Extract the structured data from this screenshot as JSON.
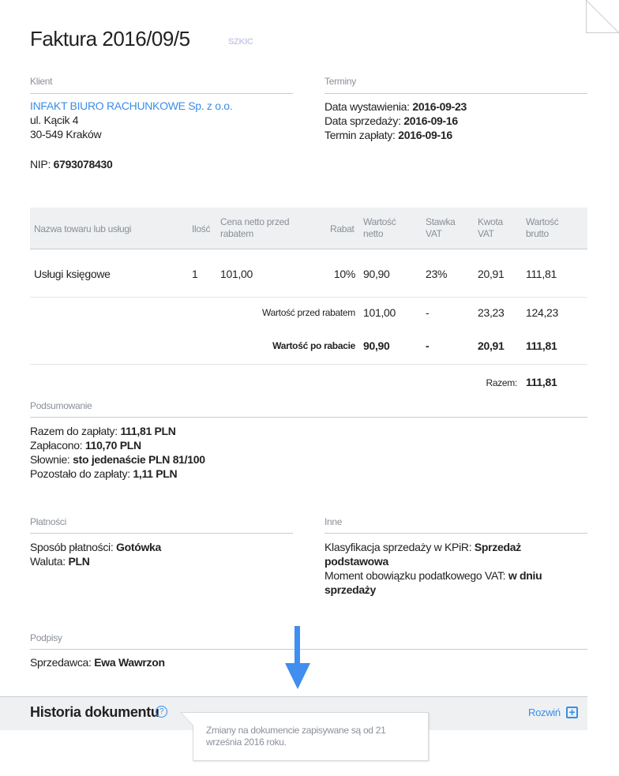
{
  "header": {
    "title": "Faktura 2016/09/5",
    "status": "SZKIC"
  },
  "client": {
    "label": "Klient",
    "name": "INFAKT BIURO RACHUNKOWE Sp. z o.o.",
    "street": "ul. Kącik 4",
    "city": "30-549 Kraków",
    "nip_label": "NIP:",
    "nip": "6793078430"
  },
  "terms": {
    "label": "Terminy",
    "rows": [
      {
        "k": "Data wystawienia:",
        "v": "2016-09-23"
      },
      {
        "k": "Data sprzedaży:",
        "v": "2016-09-16"
      },
      {
        "k": "Termin zapłaty:",
        "v": "2016-09-16"
      }
    ]
  },
  "table": {
    "headers": [
      "Nazwa towaru lub usługi",
      "Ilość",
      "Cena netto przed rabatem",
      "Rabat",
      "Wartość netto",
      "Stawka VAT",
      "Kwota VAT",
      "Wartość brutto"
    ],
    "row": [
      "Usługi księgowe",
      "1",
      "101,00",
      "10%",
      "90,90",
      "23%",
      "20,91",
      "111,81"
    ],
    "before": {
      "label": "Wartość przed rabatem",
      "netto": "101,00",
      "rate": "-",
      "vat": "23,23",
      "brutto": "124,23"
    },
    "after": {
      "label": "Wartość po rabacie",
      "netto": "90,90",
      "rate": "-",
      "vat": "20,91",
      "brutto": "111,81"
    },
    "total": {
      "label": "Razem:",
      "value": "111,81"
    }
  },
  "summary": {
    "label": "Podsumowanie",
    "rows": [
      {
        "k": "Razem do zapłaty:",
        "v": "111,81 PLN"
      },
      {
        "k": "Zapłacono:",
        "v": "110,70 PLN"
      },
      {
        "k": "Słownie:",
        "v": "sto jedenaście PLN 81/100"
      },
      {
        "k": "Pozostało do zapłaty:",
        "v": "1,11 PLN"
      }
    ]
  },
  "payments": {
    "label": "Płatności",
    "rows": [
      {
        "k": "Sposób płatności:",
        "v": "Gotówka"
      },
      {
        "k": "Waluta:",
        "v": "PLN"
      }
    ]
  },
  "other": {
    "label": "Inne",
    "rows": [
      {
        "k": "Klasyfikacja sprzedaży w KPiR:",
        "v": "Sprzedaż podstawowa"
      },
      {
        "k": "Moment obowiązku podatkowego VAT:",
        "v": "w dniu sprzedaży"
      }
    ]
  },
  "signatures": {
    "label": "Podpisy",
    "k": "Sprzedawca:",
    "v": "Ewa Wawrzon"
  },
  "history": {
    "title": "Historia dokumentu",
    "expand": "Rozwiń",
    "tooltip": "Zmiany na dokumencie zapisywane są od 21 września 2016 roku."
  },
  "colors": {
    "accent": "#3a8ee6",
    "arrow": "#3f8ef0"
  }
}
